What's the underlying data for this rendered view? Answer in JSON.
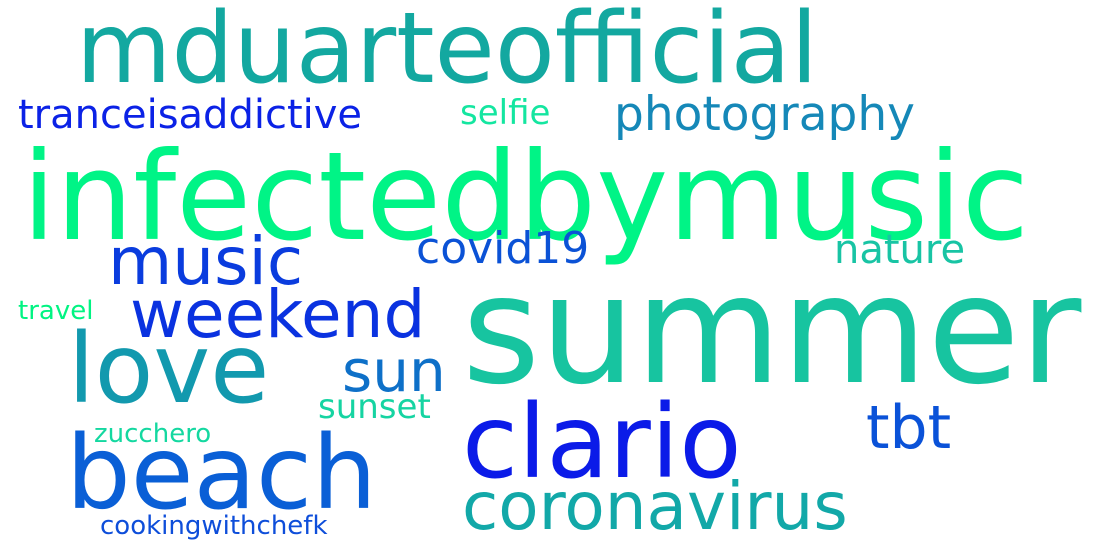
{
  "words": [
    {
      "text": "mduarteofficial",
      "color": "#13A8A0"
    },
    {
      "text": "infectedbymusic",
      "color": "#00F486"
    },
    {
      "text": "summer",
      "color": "#17C4A0"
    },
    {
      "text": "clario",
      "color": "#0B1BE8"
    },
    {
      "text": "beach",
      "color": "#0A5FD6"
    },
    {
      "text": "love",
      "color": "#1299AE"
    },
    {
      "text": "weekend",
      "color": "#0A32E0"
    },
    {
      "text": "music",
      "color": "#0A3CDE"
    },
    {
      "text": "coronavirus",
      "color": "#12A8A8"
    },
    {
      "text": "photography",
      "color": "#1588B8"
    },
    {
      "text": "covid19",
      "color": "#0B52D6"
    },
    {
      "text": "nature",
      "color": "#18C4A4"
    },
    {
      "text": "tranceisaddictive",
      "color": "#0B22E6"
    },
    {
      "text": "sun",
      "color": "#0E70C8"
    },
    {
      "text": "tbt",
      "color": "#0A52D8"
    },
    {
      "text": "selfie",
      "color": "#14E6A0"
    },
    {
      "text": "sunset",
      "color": "#16D4A2"
    },
    {
      "text": "travel",
      "color": "#00F482"
    },
    {
      "text": "zucchero",
      "color": "#14D8A0"
    },
    {
      "text": "cookingwithchefk",
      "color": "#0E4EDA"
    }
  ]
}
